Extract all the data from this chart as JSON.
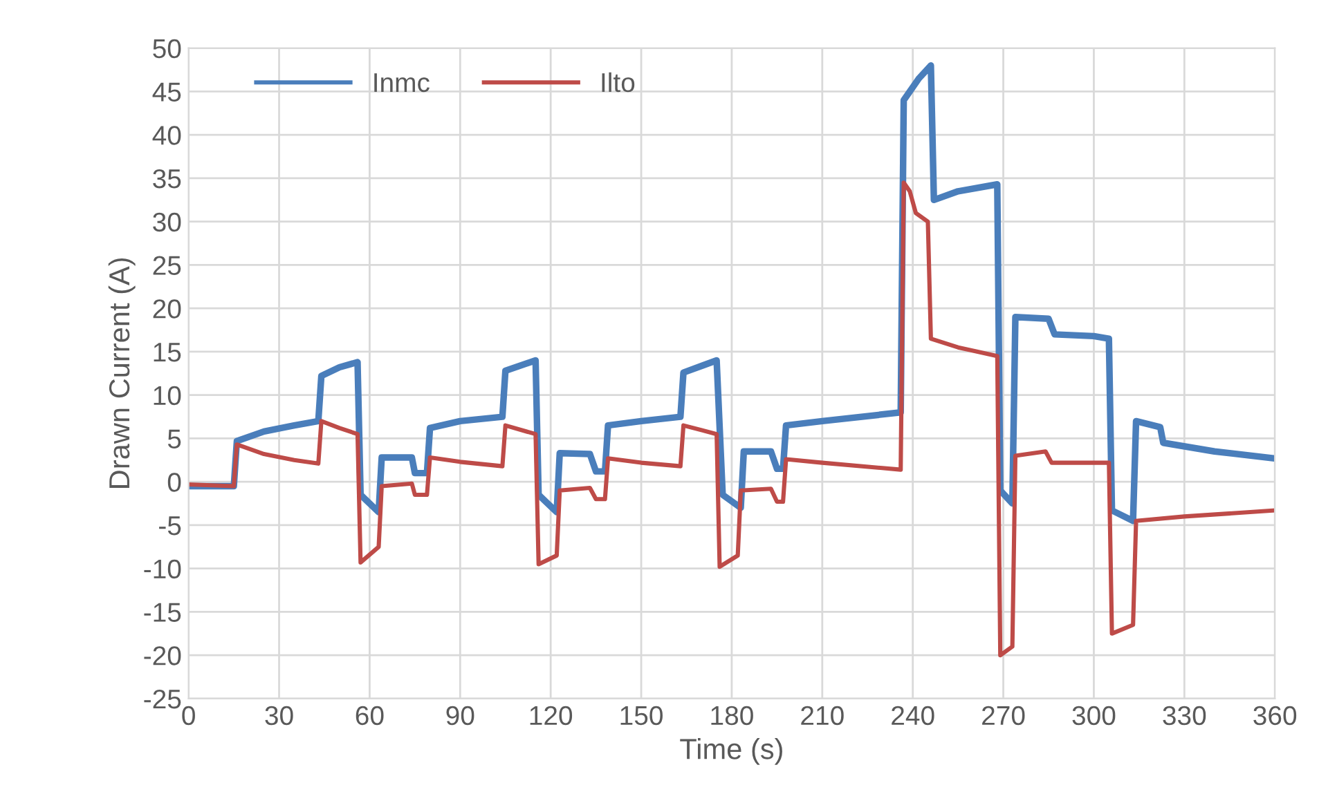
{
  "chart_data": {
    "type": "line",
    "xlabel": "Time (s)",
    "ylabel": "Drawn Current (A)",
    "xlim": [
      0,
      360
    ],
    "xticks": [
      0,
      30,
      60,
      90,
      120,
      150,
      180,
      210,
      240,
      270,
      300,
      330,
      360
    ],
    "ylim": [
      -25,
      50
    ],
    "yticks": [
      -25,
      -20,
      -15,
      -10,
      -5,
      0,
      5,
      10,
      15,
      20,
      25,
      30,
      35,
      40,
      45,
      50
    ],
    "grid": true,
    "legend": "top left",
    "marker": "none",
    "line_style": "solid",
    "series": [
      {
        "name": "Inmc",
        "color": "#4a7ebb",
        "x": [
          0,
          15,
          16,
          25,
          35,
          43,
          44,
          50,
          56,
          57,
          63,
          64,
          74,
          75,
          79,
          80,
          90,
          104,
          105,
          115,
          116,
          122,
          123,
          133,
          135,
          138,
          139,
          150,
          163,
          164,
          175,
          177,
          183,
          184,
          193,
          195,
          197,
          198,
          210,
          236,
          237,
          239,
          242,
          246,
          247,
          255,
          268,
          269,
          273,
          274,
          285,
          287,
          300,
          305,
          306,
          313,
          314,
          322,
          323,
          340,
          360
        ],
        "values": [
          -0.5,
          -0.5,
          4.7,
          5.8,
          6.5,
          7,
          12.2,
          13.2,
          13.8,
          -1.5,
          -3.5,
          2.8,
          2.8,
          1,
          1,
          6.2,
          7,
          7.5,
          12.8,
          14,
          -1.5,
          -3.5,
          3.3,
          3.2,
          1.2,
          1.2,
          6.5,
          7,
          7.5,
          12.6,
          14,
          -1.5,
          -3,
          3.5,
          3.5,
          1.5,
          1.5,
          6.5,
          7,
          8,
          44,
          45,
          46.5,
          48,
          32.5,
          33.5,
          34.3,
          -1,
          -2.5,
          19,
          18.8,
          17,
          16.8,
          16.5,
          -3.3,
          -4.5,
          7,
          6.3,
          4.5,
          3.5,
          2.7
        ]
      },
      {
        "name": "Ilto",
        "color": "#be4b48",
        "x": [
          0,
          15,
          16,
          25,
          35,
          43,
          44,
          50,
          56,
          57,
          63,
          64,
          74,
          75,
          79,
          80,
          90,
          104,
          105,
          115,
          116,
          122,
          123,
          133,
          135,
          138,
          139,
          150,
          163,
          164,
          175,
          176,
          182,
          183,
          193,
          195,
          197,
          198,
          210,
          236,
          237,
          239,
          241,
          245,
          246,
          255,
          268,
          269,
          273,
          274,
          284,
          286,
          305,
          306,
          313,
          314,
          330,
          360
        ],
        "values": [
          -0.3,
          -0.5,
          4.3,
          3.2,
          2.5,
          2.1,
          7,
          6.2,
          5.5,
          -9.3,
          -7.5,
          -0.5,
          -0.2,
          -1.5,
          -1.5,
          2.8,
          2.3,
          1.8,
          6.5,
          5.5,
          -9.5,
          -8.5,
          -1,
          -0.7,
          -2,
          -2,
          2.7,
          2.2,
          1.8,
          6.5,
          5.5,
          -9.8,
          -8.5,
          -1,
          -0.8,
          -2.3,
          -2.3,
          2.6,
          2.2,
          1.4,
          34.5,
          33.5,
          31,
          30,
          16.5,
          15.5,
          14.5,
          -20,
          -19,
          3,
          3.5,
          2.2,
          2.2,
          -17.5,
          -16.5,
          -4.5,
          -4,
          -3.3
        ]
      }
    ]
  }
}
